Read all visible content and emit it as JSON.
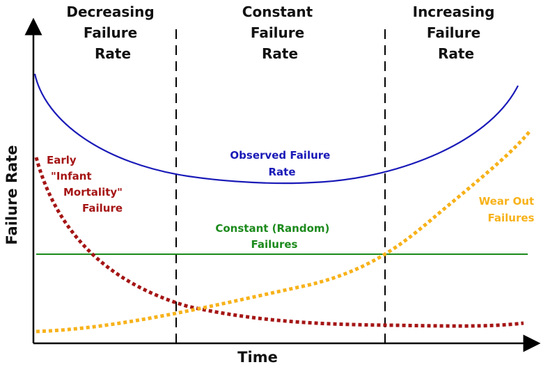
{
  "regions": {
    "decreasing": [
      "Decreasing",
      "Failure",
      "Rate"
    ],
    "constant": [
      "Constant",
      "Failure",
      "Rate"
    ],
    "increasing": [
      "Increasing",
      "Failure",
      "Rate"
    ]
  },
  "axes": {
    "y_label": "Failure Rate",
    "x_label": "Time"
  },
  "curves": {
    "observed": {
      "lines": [
        "Observed Failure",
        "Rate"
      ],
      "color": "#1a1ab8"
    },
    "constant": {
      "lines": [
        "Constant (Random)",
        "Failures"
      ],
      "color": "#1c8a1c"
    },
    "infant": {
      "lines": [
        "Early",
        "\"Infant",
        "Mortality\"",
        "Failure"
      ],
      "color": "#a51515"
    },
    "wearout": {
      "lines": [
        "Wear Out",
        "Failures"
      ],
      "color": "#f7b21a"
    }
  }
}
